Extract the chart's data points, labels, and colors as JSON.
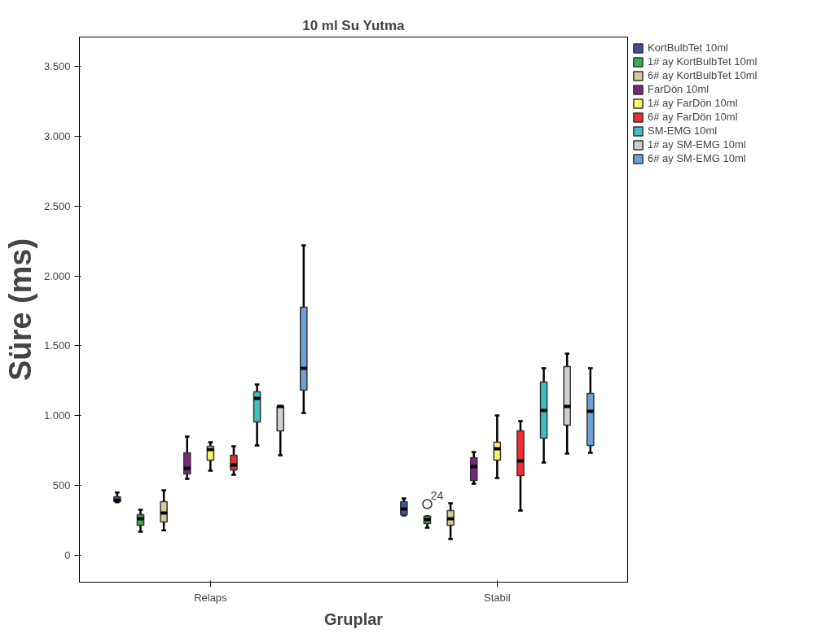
{
  "chart_data": {
    "type": "box",
    "title": "10 ml Su Yutma",
    "xlabel": "Gruplar",
    "ylabel": "Süre (ms)",
    "categories": [
      "Relaps",
      "Stabil"
    ],
    "ylim": [
      -192,
      3710
    ],
    "yticks": [
      {
        "value": 0,
        "label": "0"
      },
      {
        "value": 500,
        "label": "500"
      },
      {
        "value": 1000,
        "label": "1.000"
      },
      {
        "value": 1500,
        "label": "1.500"
      },
      {
        "value": 2000,
        "label": "2.000"
      },
      {
        "value": 2500,
        "label": "2.500"
      },
      {
        "value": 3000,
        "label": "3.000"
      },
      {
        "value": 3500,
        "label": "3.500"
      }
    ],
    "grid": false,
    "legend": "top right",
    "annotations": [
      "24"
    ],
    "series": [
      {
        "name": "KortBulbTet 10ml",
        "color": "#3953a4",
        "boxes": [
          {
            "low": 380,
            "q1": 385,
            "median": 395,
            "q3": 420,
            "high": 450
          },
          {
            "low": 285,
            "q1": 290,
            "median": 332,
            "q3": 384,
            "high": 408
          }
        ]
      },
      {
        "name": "1# ay KortBulbTet 10ml",
        "color": "#2bb34a",
        "boxes": [
          {
            "low": 169,
            "q1": 215,
            "median": 262,
            "q3": 291,
            "high": 326
          },
          {
            "low": 198,
            "q1": 227,
            "median": 256,
            "q3": 280,
            "high": 280,
            "outliers": [
              367
            ]
          }
        ]
      },
      {
        "name": "6# ay KortBulbTet 10ml",
        "color": "#d4cc98",
        "boxes": [
          {
            "low": 180,
            "q1": 239,
            "median": 303,
            "q3": 384,
            "high": 466
          },
          {
            "low": 116,
            "q1": 215,
            "median": 262,
            "q3": 320,
            "high": 373
          }
        ]
      },
      {
        "name": "FarDön 10ml",
        "color": "#7b2683",
        "boxes": [
          {
            "low": 548,
            "q1": 583,
            "median": 623,
            "q3": 734,
            "high": 850
          },
          {
            "low": 513,
            "q1": 536,
            "median": 635,
            "q3": 699,
            "high": 740
          }
        ]
      },
      {
        "name": "1# ay FarDön 10ml",
        "color": "#fbf56c",
        "boxes": [
          {
            "low": 606,
            "q1": 682,
            "median": 757,
            "q3": 780,
            "high": 810
          },
          {
            "low": 553,
            "q1": 682,
            "median": 763,
            "q3": 810,
            "high": 1002
          }
        ]
      },
      {
        "name": "6# ay FarDön 10ml",
        "color": "#ee2e32",
        "boxes": [
          {
            "low": 577,
            "q1": 612,
            "median": 646,
            "q3": 716,
            "high": 780
          },
          {
            "low": 320,
            "q1": 571,
            "median": 676,
            "q3": 891,
            "high": 961
          }
        ]
      },
      {
        "name": "SM-EMG 10ml",
        "color": "#3ebfc1",
        "boxes": [
          {
            "low": 786,
            "q1": 955,
            "median": 1124,
            "q3": 1171,
            "high": 1223
          },
          {
            "low": 664,
            "q1": 839,
            "median": 1037,
            "q3": 1240,
            "high": 1340
          }
        ]
      },
      {
        "name": "1# ay SM-EMG 10ml",
        "color": "#cfcfcf",
        "boxes": [
          {
            "low": 716,
            "q1": 891,
            "median": 1066,
            "q3": 1066,
            "high": 1066
          },
          {
            "low": 728,
            "q1": 932,
            "median": 1066,
            "q3": 1351,
            "high": 1444
          }
        ]
      },
      {
        "name": "6# ay SM-EMG 10ml",
        "color": "#6fa1d6",
        "boxes": [
          {
            "low": 1019,
            "q1": 1182,
            "median": 1339,
            "q3": 1776,
            "high": 2219
          },
          {
            "low": 734,
            "q1": 786,
            "median": 1031,
            "q3": 1159,
            "high": 1340
          }
        ]
      }
    ]
  }
}
